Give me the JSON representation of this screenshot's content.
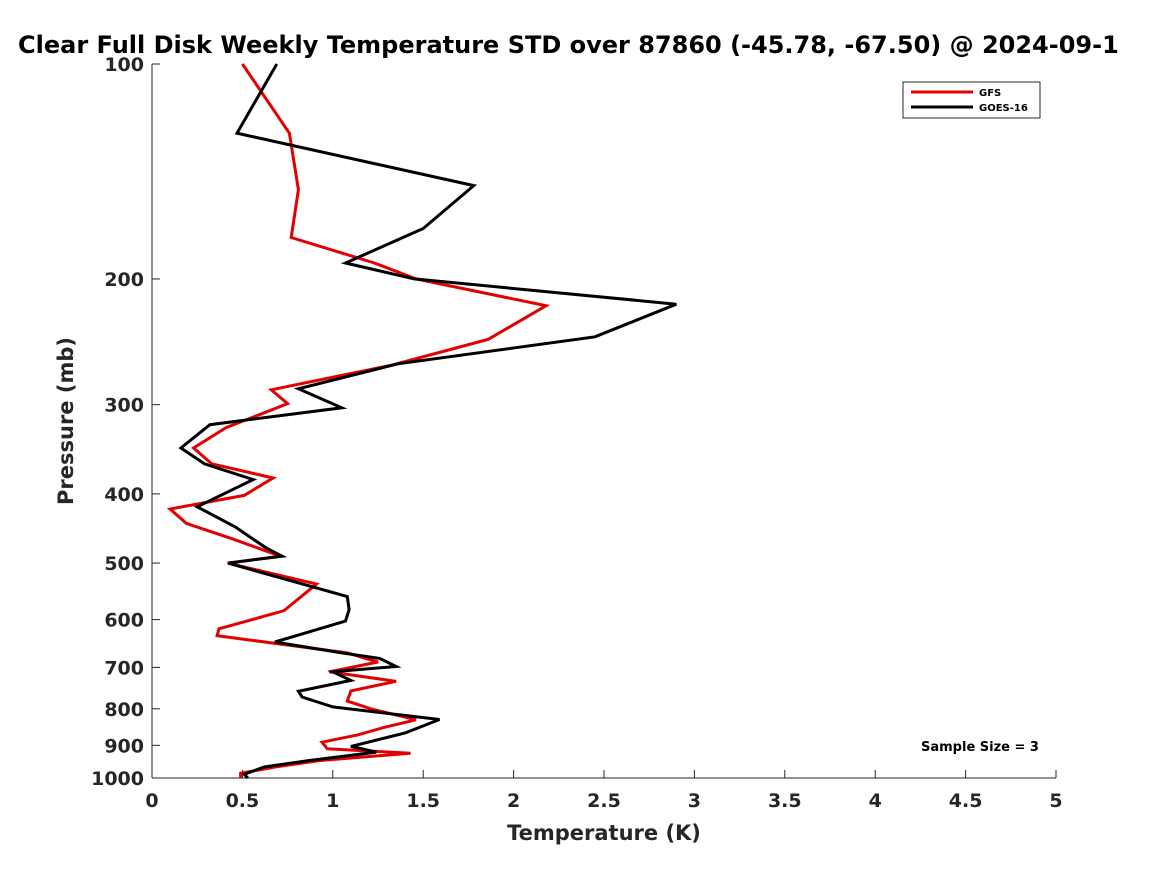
{
  "chart_data": {
    "type": "line",
    "title": "Clear Full Disk Weekly Temperature STD over 87860 (-45.78, -67.50) @ 2024-09-1",
    "xlabel": "Temperature (K)",
    "ylabel": "Pressure (mb)",
    "xlim": [
      0,
      5
    ],
    "ylim": [
      100,
      1000
    ],
    "y_scale": "log",
    "y_reversed": true,
    "grid": false,
    "legend_position": "top-right",
    "x_ticks": [
      0,
      0.5,
      1,
      1.5,
      2,
      2.5,
      3,
      3.5,
      4,
      4.5,
      5
    ],
    "x_tick_labels": [
      "0",
      "0.5",
      "1",
      "1.5",
      "2",
      "2.5",
      "3",
      "3.5",
      "4",
      "4.5",
      "5"
    ],
    "y_ticks": [
      100,
      200,
      300,
      400,
      500,
      600,
      700,
      800,
      900,
      1000
    ],
    "y_tick_labels": [
      "100",
      "200",
      "300",
      "400",
      "500",
      "600",
      "700",
      "800",
      "900",
      "1000"
    ],
    "annotation": "Sample Size = 3",
    "series": [
      {
        "name": "GFS",
        "color": "#e30000",
        "points": [
          [
            0.5,
            100
          ],
          [
            0.76,
            125
          ],
          [
            0.81,
            150
          ],
          [
            0.77,
            175
          ],
          [
            1.23,
            190
          ],
          [
            1.46,
            200
          ],
          [
            2.18,
            218
          ],
          [
            1.86,
            243
          ],
          [
            1.33,
            264
          ],
          [
            0.66,
            286
          ],
          [
            0.75,
            299
          ],
          [
            0.41,
            323
          ],
          [
            0.23,
            345
          ],
          [
            0.33,
            363
          ],
          [
            0.67,
            380
          ],
          [
            0.51,
            402
          ],
          [
            0.1,
            420
          ],
          [
            0.19,
            440
          ],
          [
            0.45,
            463
          ],
          [
            0.71,
            489
          ],
          [
            0.42,
            500
          ],
          [
            0.91,
            535
          ],
          [
            0.73,
            583
          ],
          [
            0.37,
            618
          ],
          [
            0.36,
            632
          ],
          [
            1.08,
            668
          ],
          [
            1.25,
            688
          ],
          [
            0.98,
            710
          ],
          [
            1.35,
            732
          ],
          [
            1.1,
            755
          ],
          [
            1.08,
            780
          ],
          [
            1.21,
            800
          ],
          [
            1.46,
            829
          ],
          [
            1.28,
            850
          ],
          [
            1.14,
            870
          ],
          [
            0.94,
            891
          ],
          [
            0.97,
            910
          ],
          [
            1.43,
            923
          ],
          [
            0.93,
            945
          ],
          [
            0.68,
            965
          ],
          [
            0.49,
            985
          ],
          [
            0.49,
            1000
          ]
        ]
      },
      {
        "name": "GOES-16",
        "color": "#000000",
        "points": [
          [
            0.69,
            100
          ],
          [
            0.47,
            125
          ],
          [
            1.78,
            148
          ],
          [
            1.5,
            170
          ],
          [
            1.07,
            190
          ],
          [
            1.45,
            200
          ],
          [
            2.9,
            217
          ],
          [
            2.45,
            241
          ],
          [
            1.36,
            263
          ],
          [
            0.81,
            285
          ],
          [
            1.05,
            303
          ],
          [
            0.32,
            320
          ],
          [
            0.16,
            345
          ],
          [
            0.29,
            363
          ],
          [
            0.56,
            382
          ],
          [
            0.25,
            417
          ],
          [
            0.46,
            445
          ],
          [
            0.63,
            476
          ],
          [
            0.72,
            489
          ],
          [
            0.42,
            500
          ],
          [
            1.08,
            557
          ],
          [
            1.09,
            581
          ],
          [
            1.07,
            603
          ],
          [
            0.68,
            645
          ],
          [
            1.05,
            668
          ],
          [
            1.26,
            680
          ],
          [
            1.35,
            698
          ],
          [
            1.0,
            710
          ],
          [
            1.1,
            730
          ],
          [
            0.81,
            756
          ],
          [
            0.83,
            770
          ],
          [
            1.0,
            795
          ],
          [
            1.59,
            828
          ],
          [
            1.4,
            865
          ],
          [
            1.1,
            903
          ],
          [
            1.24,
            920
          ],
          [
            0.87,
            945
          ],
          [
            0.62,
            965
          ],
          [
            0.51,
            988
          ],
          [
            0.53,
            1000
          ]
        ]
      }
    ]
  }
}
